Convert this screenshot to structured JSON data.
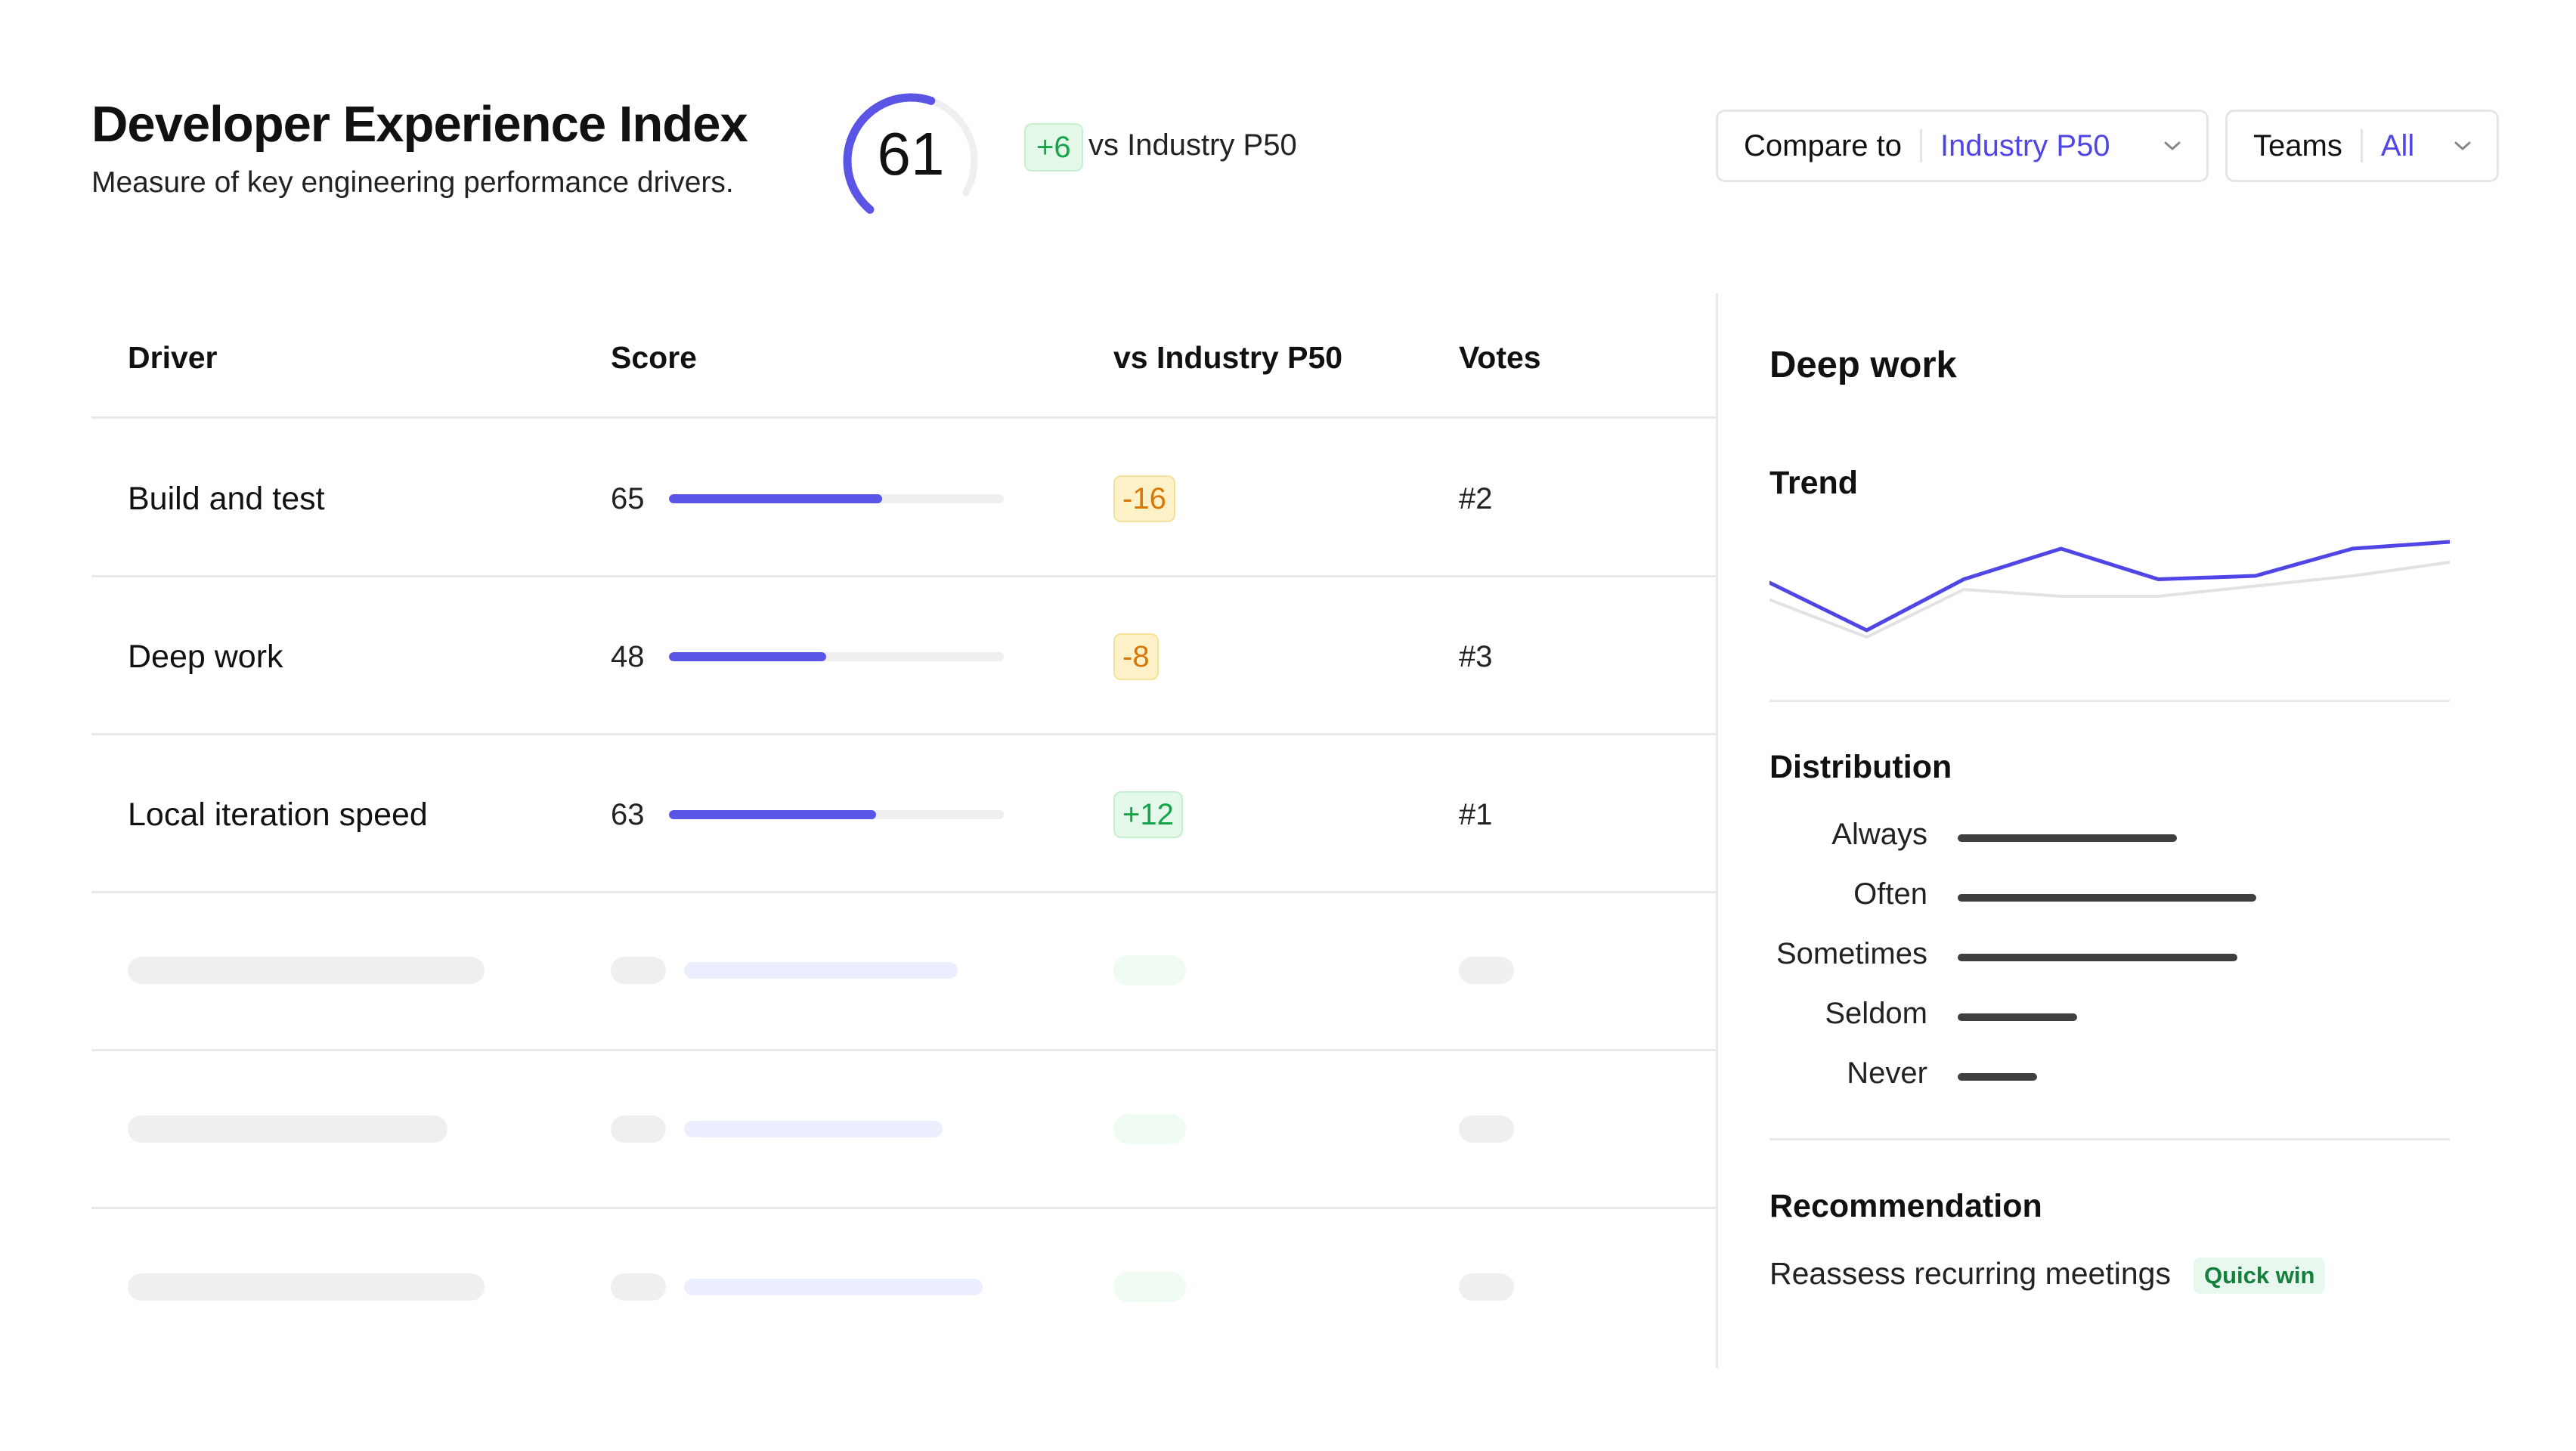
{
  "header": {
    "title": "Developer Experience Index",
    "subtitle": "Measure of key engineering performance drivers.",
    "score": "61",
    "score_fraction": 0.61,
    "delta": "+6",
    "delta_label": "vs Industry P50"
  },
  "filters": {
    "compare": {
      "label": "Compare to",
      "value": "Industry P50"
    },
    "teams": {
      "label": "Teams",
      "value": "All"
    }
  },
  "table": {
    "headers": [
      "Driver",
      "Score",
      "vs Industry P50",
      "Votes"
    ],
    "rows": [
      {
        "driver": "Build and test",
        "score": "65",
        "score_value": 65,
        "delta": "-16",
        "delta_type": "negative",
        "votes": "#2"
      },
      {
        "driver": "Deep work",
        "score": "48",
        "score_value": 48,
        "delta": "-8",
        "delta_type": "negative",
        "votes": "#3"
      },
      {
        "driver": "Local iteration speed",
        "score": "63",
        "score_value": 63,
        "delta": "+12",
        "delta_type": "positive",
        "votes": "#1"
      }
    ],
    "placeholder_rows": 3
  },
  "panel": {
    "title": "Deep work",
    "trend": {
      "title": "Trend",
      "chart_data": {
        "type": "line",
        "series": [
          {
            "values": [
              52,
              38,
              53,
              62,
              53,
              54,
              62,
              64
            ],
            "color": "#4f46e5"
          },
          {
            "values": [
              47,
              36,
              50,
              48,
              48,
              51,
              54,
              58
            ],
            "color": "#e2e2e2"
          }
        ],
        "ylim": [
          30,
          70
        ]
      }
    },
    "distribution": {
      "title": "Distribution",
      "items": [
        {
          "label": "Always",
          "value": 290
        },
        {
          "label": "Often",
          "value": 395
        },
        {
          "label": "Sometimes",
          "value": 370
        },
        {
          "label": "Seldom",
          "value": 158
        },
        {
          "label": "Never",
          "value": 105
        }
      ],
      "max": 395
    },
    "recommendation": {
      "title": "Recommendation",
      "text": "Reassess recurring meetings",
      "tag": "Quick win"
    }
  },
  "colors": {
    "accent": "#4f46e5",
    "positive": "#16a34a",
    "negative": "#d97706"
  }
}
